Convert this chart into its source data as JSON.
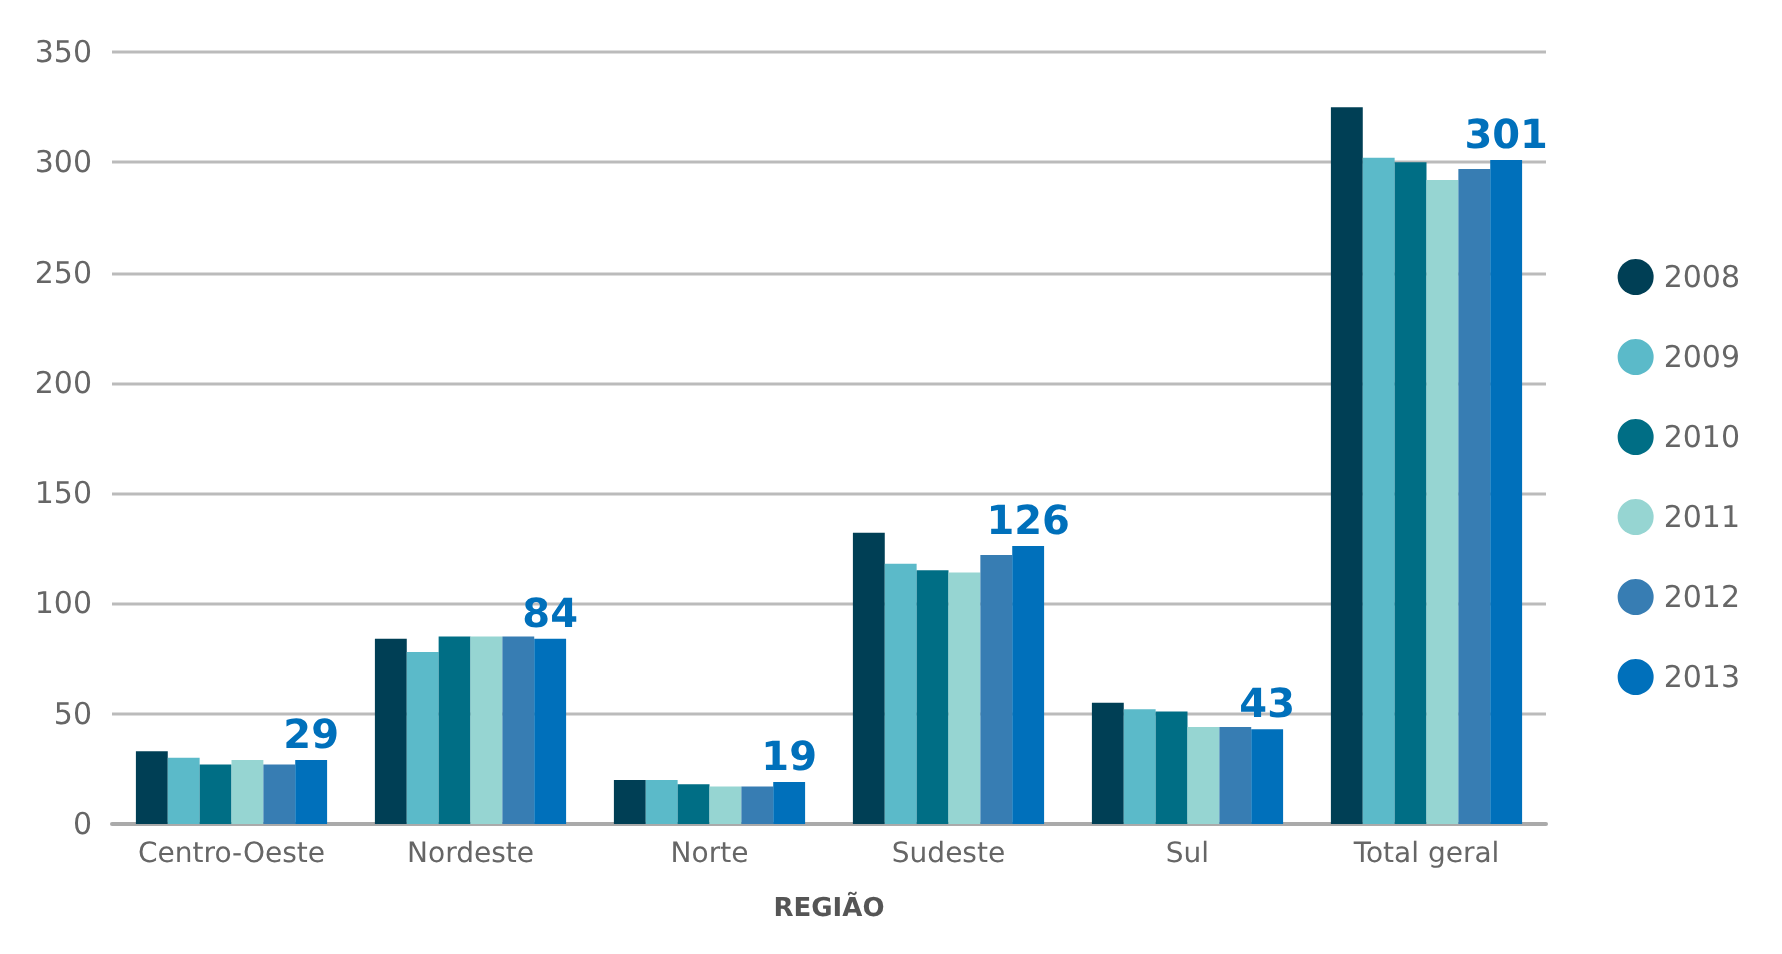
{
  "chart_data": {
    "type": "bar",
    "xlabel": "REGIÃO",
    "categories": [
      "Centro-Oeste",
      "Nordeste",
      "Norte",
      "Sudeste",
      "Sul",
      "Total geral"
    ],
    "series": [
      {
        "name": "2008",
        "color": "#003f55",
        "values": [
          33,
          84,
          20,
          132,
          55,
          325
        ]
      },
      {
        "name": "2009",
        "color": "#5bbac9",
        "values": [
          30,
          78,
          20,
          118,
          52,
          302
        ]
      },
      {
        "name": "2010",
        "color": "#006e85",
        "values": [
          27,
          85,
          18,
          115,
          51,
          300
        ]
      },
      {
        "name": "2011",
        "color": "#96d5d2",
        "values": [
          29,
          85,
          17,
          114,
          44,
          292
        ]
      },
      {
        "name": "2012",
        "color": "#377db3",
        "values": [
          27,
          85,
          17,
          122,
          44,
          297
        ]
      },
      {
        "name": "2013",
        "color": "#0070bb",
        "values": [
          29,
          84,
          19,
          126,
          43,
          301
        ],
        "value_labels": [
          "29",
          "84",
          "19",
          "126",
          "43",
          "301"
        ]
      }
    ],
    "ylim": [
      0,
      350
    ],
    "yticks": [
      0,
      50,
      100,
      150,
      200,
      250,
      300,
      350
    ],
    "grid": "y",
    "legend": "right"
  }
}
